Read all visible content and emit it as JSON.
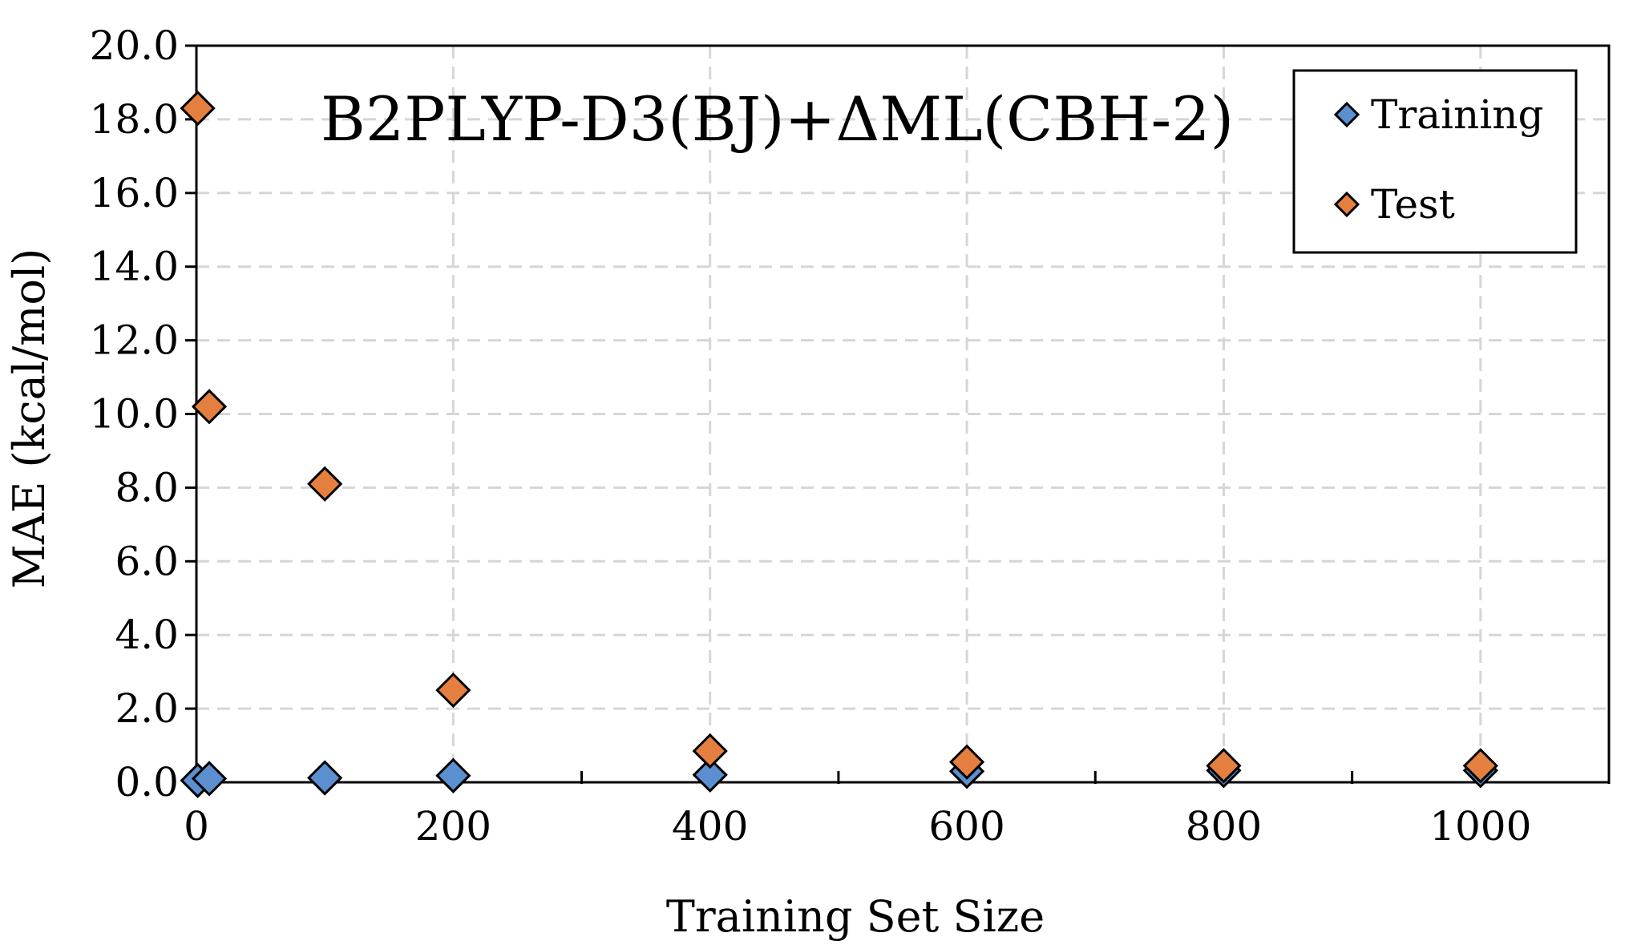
{
  "chart_data": {
    "type": "scatter",
    "title": "B2PLYP-D3(BJ)+ΔML(CBH-2)",
    "xlabel": "Training Set Size",
    "ylabel": "MAE (kcal/mol)",
    "xlim": [
      0,
      1100
    ],
    "ylim": [
      0,
      20
    ],
    "x_ticks": [
      0,
      200,
      400,
      600,
      800,
      1000
    ],
    "x_tick_labels": [
      "0",
      "200",
      "400",
      "600",
      "800",
      "1000"
    ],
    "x_minor_ticks": [
      100,
      300,
      500,
      700,
      900,
      1100
    ],
    "y_ticks": [
      0,
      2,
      4,
      6,
      8,
      10,
      12,
      14,
      16,
      18,
      20
    ],
    "y_tick_labels": [
      "0.0",
      "2.0",
      "4.0",
      "6.0",
      "8.0",
      "10.0",
      "12.0",
      "14.0",
      "16.0",
      "18.0",
      "20.0"
    ],
    "grid": true,
    "legend_position": "top-right",
    "series": [
      {
        "name": "Training",
        "color": "#5b8fd0",
        "marker": "diamond",
        "x": [
          1,
          10,
          100,
          200,
          400,
          600,
          800,
          1000
        ],
        "y": [
          0.05,
          0.1,
          0.12,
          0.18,
          0.2,
          0.3,
          0.32,
          0.32
        ]
      },
      {
        "name": "Test",
        "color": "#e57f3f",
        "marker": "diamond",
        "x": [
          1,
          10,
          100,
          200,
          400,
          600,
          800,
          1000
        ],
        "y": [
          18.3,
          10.2,
          8.1,
          2.5,
          0.85,
          0.55,
          0.45,
          0.45
        ]
      }
    ]
  }
}
